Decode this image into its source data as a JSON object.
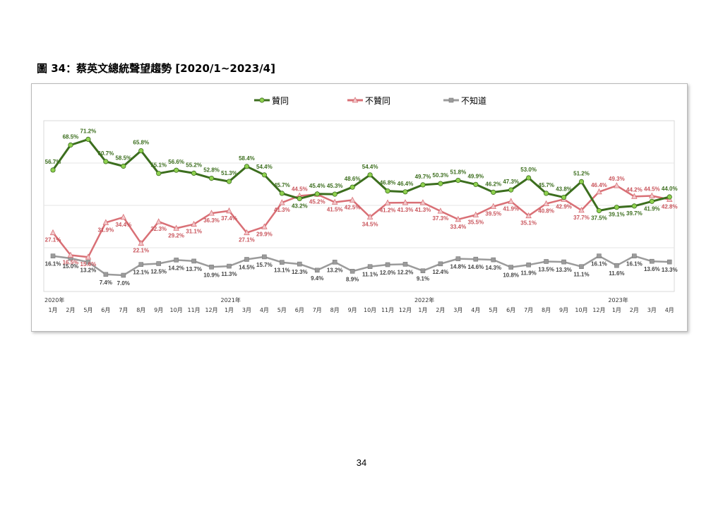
{
  "figure_title": "圖 34：蔡英文總統聲望趨勢  [2020/1~2023/4]",
  "page_number": "34",
  "colors": {
    "approve": "#3c6e1e",
    "approve_marker": "#8fd14f",
    "disapprove": "#d97076",
    "unknown": "#9b9b9b",
    "gridline": "#e6e6e6"
  },
  "chart_data": {
    "type": "line",
    "title": "",
    "xlabel": "",
    "ylabel": "",
    "ylim": [
      0,
      80
    ],
    "grid": true,
    "legend_position": "top",
    "categories": [
      "1月",
      "2月",
      "5月",
      "6月",
      "7月",
      "8月",
      "9月",
      "10月",
      "11月",
      "12月",
      "1月",
      "3月",
      "4月",
      "5月",
      "6月",
      "7月",
      "8月",
      "9月",
      "10月",
      "11月",
      "12月",
      "1月",
      "2月",
      "3月",
      "4月",
      "5月",
      "6月",
      "7月",
      "8月",
      "9月",
      "10月",
      "12月",
      "1月",
      "2月",
      "3月",
      "4月"
    ],
    "year_labels": [
      {
        "index": 0,
        "label": "2020年"
      },
      {
        "index": 10,
        "label": "2021年"
      },
      {
        "index": 21,
        "label": "2022年"
      },
      {
        "index": 32,
        "label": "2023年"
      }
    ],
    "series": [
      {
        "name": "贊同",
        "key": "approve",
        "marker": "circle",
        "values": [
          56.7,
          68.5,
          71.2,
          60.7,
          58.5,
          65.8,
          55.1,
          56.6,
          55.2,
          52.8,
          51.3,
          58.4,
          54.4,
          45.7,
          43.2,
          45.4,
          45.3,
          48.6,
          54.4,
          46.8,
          46.4,
          49.7,
          50.3,
          51.8,
          49.9,
          46.2,
          47.3,
          53.0,
          45.7,
          43.8,
          51.2,
          37.5,
          39.1,
          39.7,
          41.9,
          44.0
        ]
      },
      {
        "name": "不贊同",
        "key": "disapprove",
        "marker": "triangle",
        "values": [
          27.1,
          16.5,
          15.6,
          31.9,
          34.4,
          22.1,
          32.3,
          29.2,
          31.1,
          36.3,
          37.4,
          27.1,
          29.9,
          41.3,
          44.5,
          45.2,
          41.5,
          42.5,
          34.5,
          41.2,
          41.3,
          41.3,
          37.3,
          33.4,
          35.5,
          39.5,
          41.9,
          35.1,
          40.8,
          42.9,
          37.7,
          46.4,
          49.3,
          44.2,
          44.5,
          42.8
        ]
      },
      {
        "name": "不知道",
        "key": "unknown",
        "marker": "square",
        "values": [
          16.1,
          15.0,
          13.2,
          7.4,
          7.0,
          12.1,
          12.5,
          14.2,
          13.7,
          10.9,
          11.3,
          14.5,
          15.7,
          13.1,
          12.3,
          9.4,
          13.2,
          8.9,
          11.1,
          12.0,
          12.2,
          9.1,
          12.4,
          14.8,
          14.6,
          14.3,
          10.8,
          11.9,
          13.5,
          13.3,
          11.1,
          16.1,
          11.6,
          16.1,
          13.6,
          13.3
        ]
      }
    ]
  }
}
